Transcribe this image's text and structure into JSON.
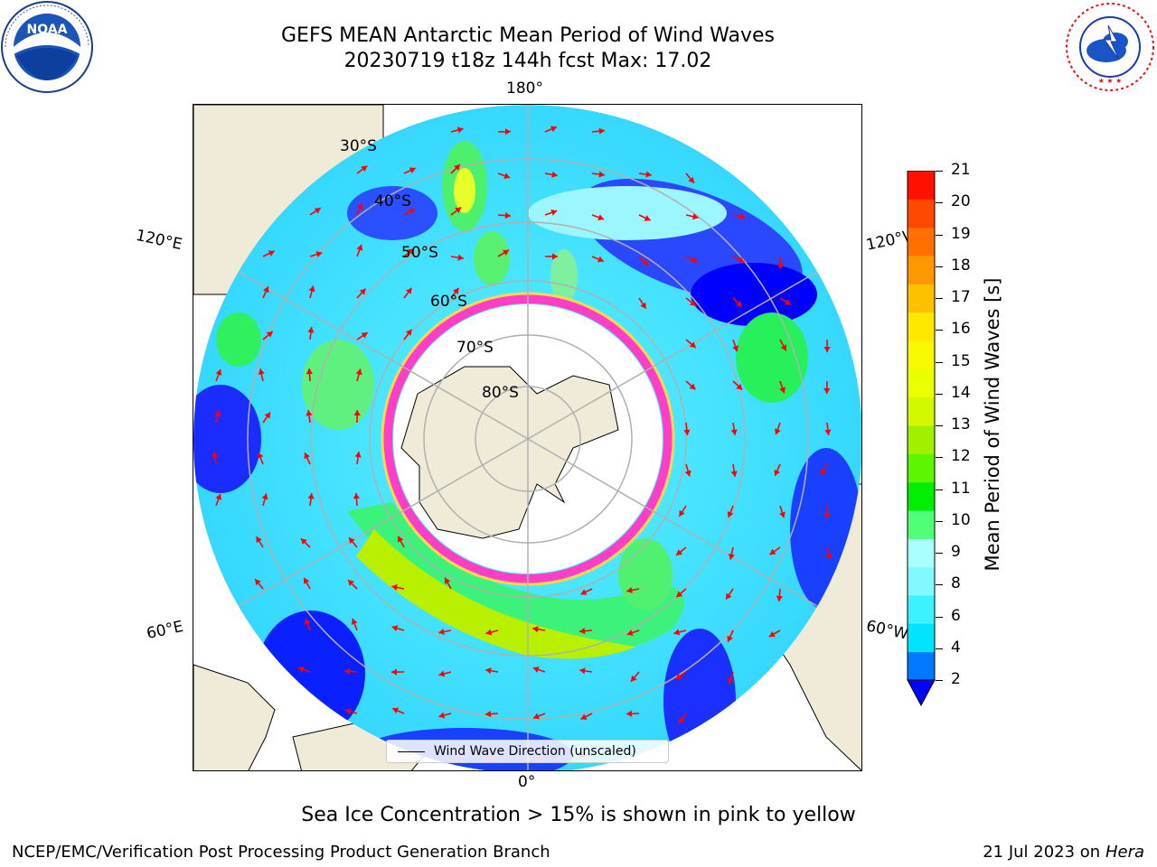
{
  "header": {
    "title_line1": "GEFS MEAN Antarctic Mean Period of Wind Waves",
    "title_line2": "20230719 t18z 144h fcst   Max: 17.02"
  },
  "logos": {
    "left": "noaa-logo",
    "left_text": "NOAA",
    "right": "national-weather-service-logo",
    "right_text": "NATIONAL WEATHER SERVICE"
  },
  "map": {
    "projection": "south-polar-stereographic",
    "longitude_labels": {
      "top": "180°",
      "bottom": "0°",
      "upper_left": "120°E",
      "upper_right": "120°W",
      "lower_left": "60°E",
      "lower_right": "60°W"
    },
    "latitude_labels": [
      "30°S",
      "40°S",
      "50°S",
      "60°S",
      "70°S",
      "80°S"
    ],
    "colors": {
      "land": "#efebd8",
      "grid": "#b0b0b0",
      "arrow": "#ff0000",
      "sea_ice_pink": "#ff3ec8",
      "sea_ice_yellow": "#ffd84a"
    },
    "legend": "Wind Wave Direction (unscaled)"
  },
  "colorbar": {
    "label": "Mean Period of Wind Waves [s]",
    "ticks": [
      "21",
      "20",
      "19",
      "18",
      "17",
      "16",
      "15",
      "14",
      "13",
      "12",
      "11",
      "10",
      "9",
      "8",
      "6",
      "4",
      "2"
    ],
    "colors_bottom_to_top": [
      "#0078ff",
      "#00e4ff",
      "#3cf2ff",
      "#80faff",
      "#aaffff",
      "#50ff78",
      "#00ef00",
      "#5df600",
      "#a0f000",
      "#d4f800",
      "#eaff00",
      "#f8f800",
      "#ffe800",
      "#ffc000",
      "#ff9800",
      "#ff7000",
      "#ff4800",
      "#ff1000"
    ],
    "under_color": "#0000ff",
    "extend": "min"
  },
  "caption": "Sea Ice Concentration > 15% is shown in pink to yellow",
  "footer": {
    "left": "NCEP/EMC/Verification Post Processing Product Generation Branch",
    "right_date": "21 Jul 2023 on",
    "right_machine": "Hera"
  }
}
